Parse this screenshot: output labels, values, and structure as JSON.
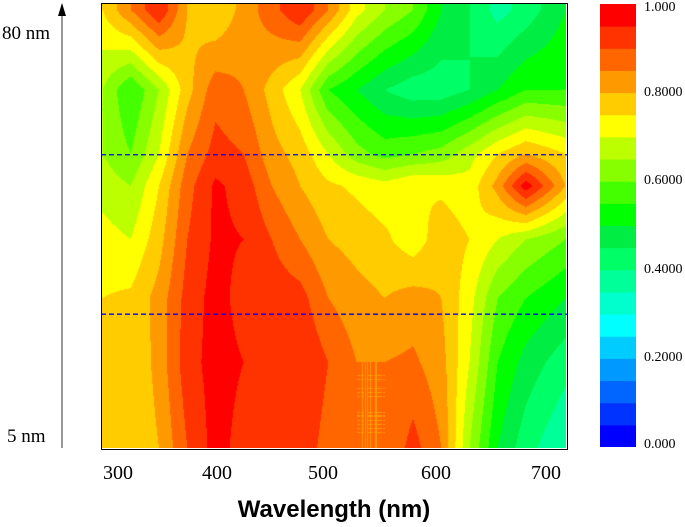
{
  "chart_data": {
    "type": "heatmap",
    "title": "",
    "xlabel": "Wavelength (nm)",
    "ylabel": "",
    "xlim": [
      300,
      710
    ],
    "ylim": [
      3,
      86
    ],
    "x_ticks": [
      "300",
      "400",
      "500",
      "600",
      "700"
    ],
    "y_tick_labels": [
      {
        "value": 80,
        "label": "80 nm"
      },
      {
        "value": 5,
        "label": "5 nm"
      }
    ],
    "x": [
      300,
      325,
      350,
      375,
      400,
      425,
      450,
      475,
      500,
      525,
      550,
      575,
      600,
      625,
      650,
      675,
      710
    ],
    "y": [
      85,
      70,
      58,
      52,
      42,
      31,
      19,
      3
    ],
    "z": [
      [
        0.75,
        0.85,
        0.95,
        0.8,
        0.75,
        0.82,
        0.88,
        0.95,
        0.85,
        0.72,
        0.65,
        0.6,
        0.5,
        0.45,
        0.38,
        0.42,
        0.5
      ],
      [
        0.65,
        0.55,
        0.65,
        0.78,
        0.88,
        0.85,
        0.78,
        0.7,
        0.55,
        0.5,
        0.45,
        0.42,
        0.42,
        0.45,
        0.5,
        0.55,
        0.55
      ],
      [
        0.65,
        0.6,
        0.7,
        0.85,
        0.92,
        0.9,
        0.82,
        0.78,
        0.7,
        0.62,
        0.58,
        0.6,
        0.62,
        0.68,
        0.75,
        0.8,
        0.75
      ],
      [
        0.68,
        0.65,
        0.75,
        0.88,
        0.96,
        0.93,
        0.85,
        0.8,
        0.76,
        0.74,
        0.72,
        0.75,
        0.74,
        0.72,
        0.82,
        0.98,
        0.8
      ],
      [
        0.72,
        0.7,
        0.78,
        0.9,
        0.96,
        0.95,
        0.9,
        0.85,
        0.8,
        0.78,
        0.76,
        0.72,
        0.78,
        0.75,
        0.7,
        0.65,
        0.6
      ],
      [
        0.75,
        0.76,
        0.82,
        0.92,
        0.97,
        0.93,
        0.93,
        0.92,
        0.85,
        0.82,
        0.8,
        0.82,
        0.8,
        0.72,
        0.6,
        0.55,
        0.5
      ],
      [
        0.75,
        0.75,
        0.82,
        0.93,
        0.97,
        0.95,
        0.92,
        0.95,
        0.9,
        0.85,
        0.85,
        0.86,
        0.82,
        0.7,
        0.55,
        0.48,
        0.42
      ],
      [
        0.77,
        0.75,
        0.8,
        0.9,
        0.97,
        0.93,
        0.9,
        0.93,
        0.88,
        0.85,
        0.85,
        0.92,
        0.85,
        0.65,
        0.5,
        0.42,
        0.35
      ]
    ],
    "dashed_lines_y": [
      58,
      28
    ],
    "dashed_line_color": "#0000ff",
    "colorbar": {
      "range": [
        0,
        1
      ],
      "levels": 20,
      "tick_labels": [
        {
          "value": 1.0,
          "label": "1.000"
        },
        {
          "value": 0.8,
          "label": "0.8000"
        },
        {
          "value": 0.6,
          "label": "0.6000"
        },
        {
          "value": 0.4,
          "label": "0.4000"
        },
        {
          "value": 0.2,
          "label": "0.2000"
        },
        {
          "value": 0.0,
          "label": "0.000"
        }
      ],
      "colors": [
        "#0000ff",
        "#0033ff",
        "#0066ff",
        "#0099ff",
        "#00ccff",
        "#00ffff",
        "#00ffcc",
        "#00ff99",
        "#00ff66",
        "#00ee44",
        "#00ff00",
        "#44ff00",
        "#88ff00",
        "#bbff00",
        "#ffff00",
        "#ffcc00",
        "#ff9900",
        "#ff6600",
        "#ff3300",
        "#ff0000"
      ]
    }
  }
}
